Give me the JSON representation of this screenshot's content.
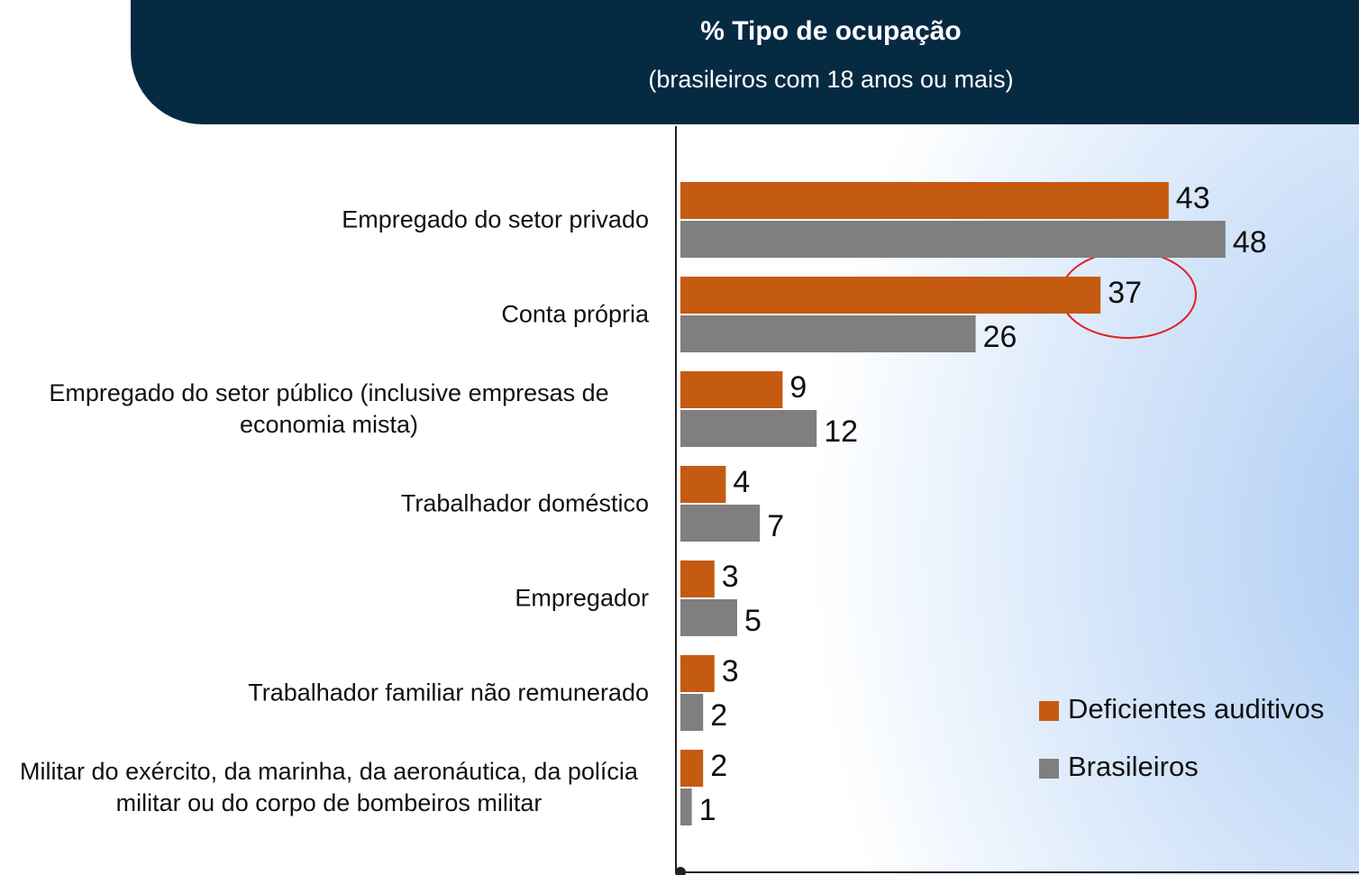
{
  "chart_data": {
    "type": "bar",
    "orientation": "horizontal",
    "title": "% Tipo de ocupação",
    "subtitle": "(brasileiros com 18 anos ou mais)",
    "categories": [
      "Empregado do setor privado",
      "Conta própria",
      "Empregado do setor público (inclusive empresas de economia mista)",
      "Trabalhador doméstico",
      "Empregador",
      "Trabalhador familiar não remunerado",
      "Militar do exército, da marinha, da aeronáutica, da polícia militar ou do corpo de bombeiros militar"
    ],
    "series": [
      {
        "name": "Deficientes auditivos",
        "color": "#c55a11",
        "values": [
          43,
          37,
          9,
          4,
          3,
          3,
          2
        ]
      },
      {
        "name": "Brasileiros",
        "color": "#7f7f7f",
        "values": [
          48,
          26,
          12,
          7,
          5,
          2,
          1
        ]
      }
    ]
  }
}
